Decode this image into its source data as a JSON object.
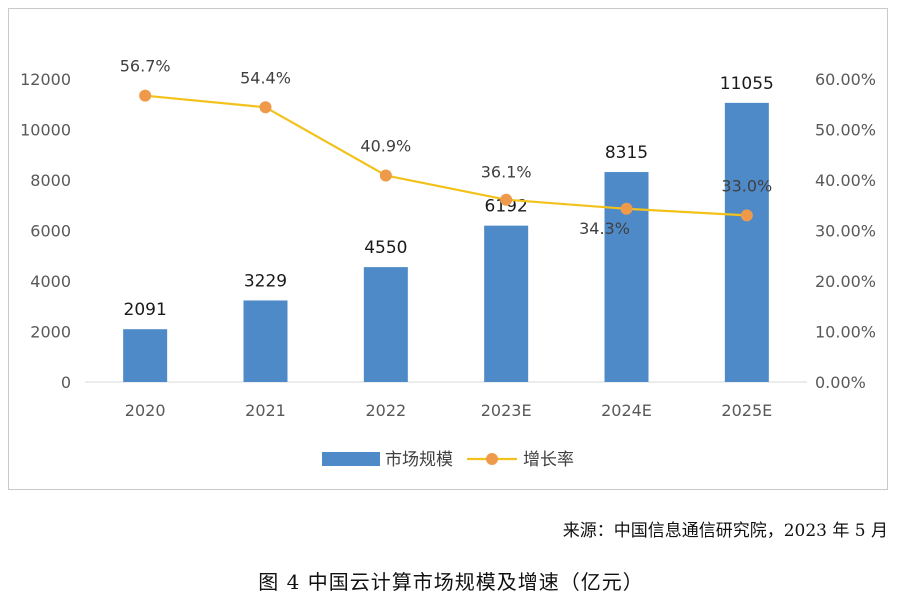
{
  "chart_data": {
    "type": "bar+line",
    "categories": [
      "2020",
      "2021",
      "2022",
      "2023E",
      "2024E",
      "2025E"
    ],
    "series": [
      {
        "name": "市场规模",
        "type": "bar",
        "axis": "left",
        "values": [
          2091,
          3229,
          4550,
          6192,
          8315,
          11055
        ],
        "labels": [
          "2091",
          "3229",
          "4550",
          "6192",
          "8315",
          "11055"
        ]
      },
      {
        "name": "增长率",
        "type": "line",
        "axis": "right",
        "values": [
          56.7,
          54.4,
          40.9,
          36.1,
          34.3,
          33.0
        ],
        "labels": [
          "56.7%",
          "54.4%",
          "40.9%",
          "36.1%",
          "34.3%",
          "33.0%"
        ]
      }
    ],
    "y_left": {
      "min": 0,
      "max": 12000,
      "ticks": [
        "0",
        "2000",
        "4000",
        "6000",
        "8000",
        "10000",
        "12000"
      ]
    },
    "y_right": {
      "min": 0,
      "max": 60,
      "ticks": [
        "0.00%",
        "10.00%",
        "20.00%",
        "30.00%",
        "40.00%",
        "50.00%",
        "60.00%"
      ]
    },
    "grid": false,
    "legend_position": "bottom"
  },
  "colors": {
    "bar": "#4e8ac8",
    "line": "#f2c21b",
    "marker": "#ee9a4a"
  },
  "source": "来源：中国信息通信研究院，2023 年 5 月",
  "caption": "图 4  中国云计算市场规模及增速（亿元）"
}
